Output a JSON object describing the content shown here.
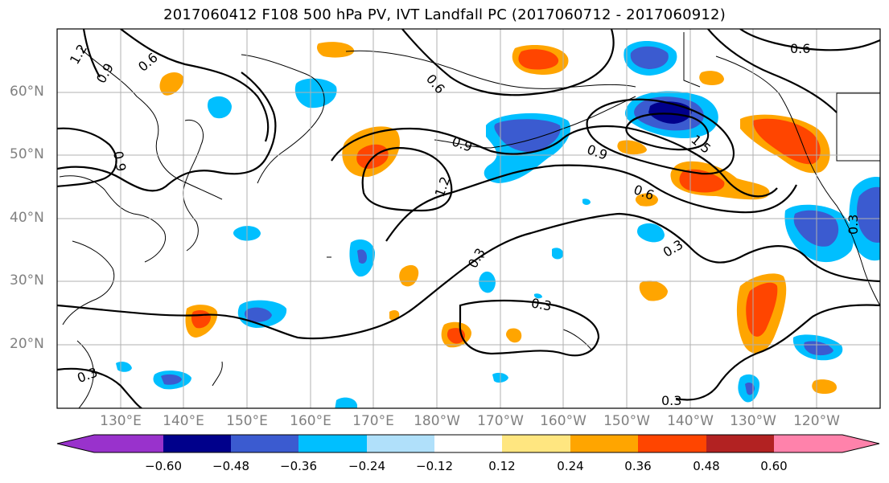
{
  "title": "2017060412 F108 500 hPa PV, IVT Landfall PC (2017060712 - 2017060912)",
  "lat_labels": [
    "60°N",
    "50°N",
    "40°N",
    "30°N",
    "20°N"
  ],
  "lon_labels": [
    "130°E",
    "140°E",
    "150°E",
    "160°E",
    "170°E",
    "180°W",
    "170°W",
    "160°W",
    "150°W",
    "140°W",
    "130°W",
    "120°W"
  ],
  "contour_labels": [
    "1.2",
    "0.9",
    "0.6",
    "0.6",
    "0.6",
    "0.9",
    "1.2",
    "0.9",
    "0.9",
    "1.5",
    "0.6",
    "0.3",
    "0.3",
    "0.3",
    "0.3",
    "0.3",
    "0.3"
  ],
  "colorbar": {
    "tick_labels": [
      "−0.60",
      "−0.48",
      "−0.36",
      "−0.24",
      "−0.12",
      "0.12",
      "0.24",
      "0.36",
      "0.48",
      "0.60"
    ],
    "colors": [
      "#9932cc",
      "#00008b",
      "#3b5bd0",
      "#00bfff",
      "#b0e0fa",
      "#ffffff",
      "#ffe680",
      "#ffa500",
      "#ff4500",
      "#b22222",
      "#ff82ab"
    ]
  }
}
